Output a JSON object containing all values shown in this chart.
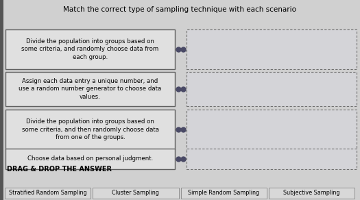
{
  "title": "Match the correct type of sampling technique with each scenario",
  "title_fontsize": 7.5,
  "background_color": "#b8b8b8",
  "content_bg": "#d0d0d0",
  "left_boxes": [
    "Divide the population into groups based on\nsome criteria, and randomly choose data from\neach group.",
    "Assign each data entry a unique number, and\nuse a random number generator to choose data\nvalues.",
    "Divide the population into groups based on\nsome criteria, and then randomly choose data\nfrom one of the groups.",
    "Choose data based on personal judgment."
  ],
  "left_box_facecolor": "#e0e0e0",
  "left_box_edgecolor": "#606060",
  "right_box_facecolor": "#d4d4d8",
  "right_box_edgecolor": "#707070",
  "connector_color": "#4a4a66",
  "dot_color": "#4a4a66",
  "drag_drop_label": "DRAG & DROP THE ANSWER",
  "drag_drop_fontsize": 7,
  "answer_labels": [
    "Stratified Random Sampling",
    "Cluster Sampling",
    "Simple Random Sampling",
    "Subjective Sampling"
  ],
  "answer_box_facecolor": "#d8d8d8",
  "answer_box_edgecolor": "#909090",
  "left_accent_color": "#555555",
  "fig_width": 5.25,
  "fig_height": 2.92,
  "dpi": 100
}
